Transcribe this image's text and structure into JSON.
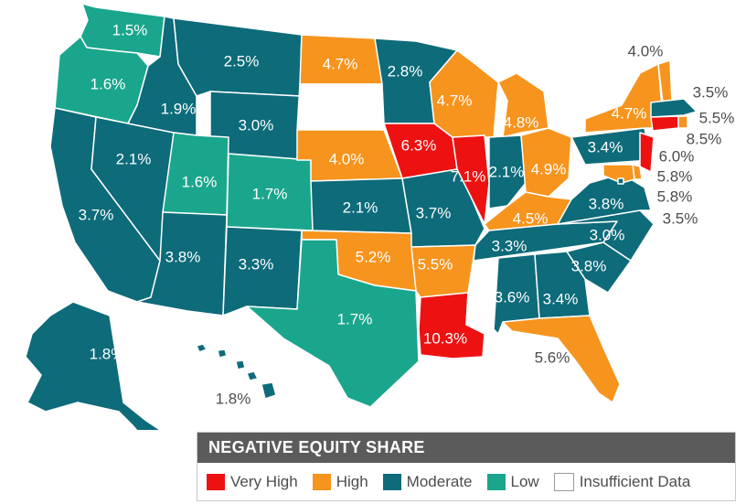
{
  "colors": {
    "very_high": "#ee1111",
    "high": "#f7941d",
    "moderate": "#0d6b7a",
    "low": "#1aa68c",
    "insufficient": "#ffffff"
  },
  "legend": {
    "title": "NEGATIVE EQUITY SHARE",
    "items": [
      {
        "label": "Very High",
        "category": "very_high"
      },
      {
        "label": "High",
        "category": "high"
      },
      {
        "label": "Moderate",
        "category": "moderate"
      },
      {
        "label": "Low",
        "category": "low"
      },
      {
        "label": "Insufficient Data",
        "category": "insufficient"
      }
    ]
  },
  "states": [
    {
      "state": "WA",
      "value": "1.5%",
      "category": "low"
    },
    {
      "state": "OR",
      "value": "1.6%",
      "category": "low"
    },
    {
      "state": "CA",
      "value": "3.7%",
      "category": "moderate"
    },
    {
      "state": "NV",
      "value": "2.1%",
      "category": "moderate"
    },
    {
      "state": "ID",
      "value": "1.9%",
      "category": "moderate"
    },
    {
      "state": "MT",
      "value": "2.5%",
      "category": "moderate"
    },
    {
      "state": "WY",
      "value": "3.0%",
      "category": "moderate"
    },
    {
      "state": "UT",
      "value": "1.6%",
      "category": "low"
    },
    {
      "state": "CO",
      "value": "1.7%",
      "category": "low"
    },
    {
      "state": "AZ",
      "value": "3.8%",
      "category": "moderate"
    },
    {
      "state": "NM",
      "value": "3.3%",
      "category": "moderate"
    },
    {
      "state": "ND",
      "value": "4.7%",
      "category": "high"
    },
    {
      "state": "SD",
      "value": "",
      "category": "insufficient"
    },
    {
      "state": "NE",
      "value": "4.0%",
      "category": "high"
    },
    {
      "state": "KS",
      "value": "2.1%",
      "category": "moderate"
    },
    {
      "state": "OK",
      "value": "5.2%",
      "category": "high"
    },
    {
      "state": "TX",
      "value": "1.7%",
      "category": "low"
    },
    {
      "state": "MN",
      "value": "2.8%",
      "category": "moderate"
    },
    {
      "state": "IA",
      "value": "6.3%",
      "category": "very_high"
    },
    {
      "state": "MO",
      "value": "3.7%",
      "category": "moderate"
    },
    {
      "state": "AR",
      "value": "5.5%",
      "category": "high"
    },
    {
      "state": "LA",
      "value": "10.3%",
      "category": "very_high"
    },
    {
      "state": "WI",
      "value": "4.7%",
      "category": "high"
    },
    {
      "state": "IL",
      "value": "7.1%",
      "category": "very_high"
    },
    {
      "state": "MI",
      "value": "4.8%",
      "category": "high"
    },
    {
      "state": "IN",
      "value": "2.1%",
      "category": "moderate"
    },
    {
      "state": "OH",
      "value": "4.9%",
      "category": "high"
    },
    {
      "state": "KY",
      "value": "4.5%",
      "category": "high"
    },
    {
      "state": "TN",
      "value": "3.3%",
      "category": "moderate"
    },
    {
      "state": "MS",
      "value": "",
      "category": "insufficient"
    },
    {
      "state": "AL",
      "value": "3.6%",
      "category": "moderate"
    },
    {
      "state": "GA",
      "value": "3.4%",
      "category": "moderate"
    },
    {
      "state": "FL",
      "value": "5.6%",
      "category": "high"
    },
    {
      "state": "SC",
      "value": "3.8%",
      "category": "moderate"
    },
    {
      "state": "NC",
      "value": "3.0%",
      "category": "moderate"
    },
    {
      "state": "VA",
      "value": "3.8%",
      "category": "moderate"
    },
    {
      "state": "WV",
      "value": "",
      "category": "insufficient"
    },
    {
      "state": "PA",
      "value": "3.4%",
      "category": "moderate"
    },
    {
      "state": "NY",
      "value": "4.7%",
      "category": "high"
    },
    {
      "state": "VT",
      "value": "4.0%",
      "category": "high"
    },
    {
      "state": "NH",
      "value": "",
      "category": "insufficient"
    },
    {
      "state": "ME",
      "value": "",
      "category": "insufficient"
    },
    {
      "state": "MA",
      "value": "3.5%",
      "category": "moderate"
    },
    {
      "state": "RI",
      "value": "5.5%",
      "category": "high"
    },
    {
      "state": "CT",
      "value": "8.5%",
      "category": "very_high"
    },
    {
      "state": "NJ",
      "value": "6.0%",
      "category": "very_high"
    },
    {
      "state": "DE",
      "value": "5.8%",
      "category": "high"
    },
    {
      "state": "MD",
      "value": "5.8%",
      "category": "high"
    },
    {
      "state": "DC",
      "value": "3.5%",
      "category": "moderate"
    },
    {
      "state": "AK",
      "value": "1.8%",
      "category": "moderate"
    },
    {
      "state": "HI",
      "value": "1.8%",
      "category": "moderate"
    }
  ]
}
